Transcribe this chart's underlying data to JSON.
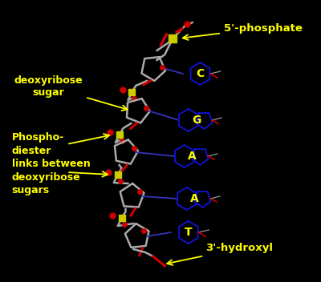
{
  "background_color": "#000000",
  "fig_width": 4.0,
  "fig_height": 3.52,
  "dpi": 100,
  "label_color": "#ffff00",
  "sugar_color": "#aaaaaa",
  "phosphate_color": "#cccc00",
  "oxygen_color": "#cc0000",
  "base_ring_color": "#1111cc",
  "base_label_color": "#ffff00",
  "backbone_color": "#888888",
  "blue_accent": "#3333bb",
  "labels": {
    "phosphate": "5'-phosphate",
    "sugar": "deoxyribose\nsugar",
    "hydroxyl": "3'-hydroxyl",
    "phosphodiester": "Phospho-\ndiester\nlinks between\ndeoxyribose\nsugars"
  },
  "bases": [
    "C",
    "G",
    "A",
    "A",
    "T"
  ],
  "label_fontsize": 9.5,
  "base_fontsize": 10
}
